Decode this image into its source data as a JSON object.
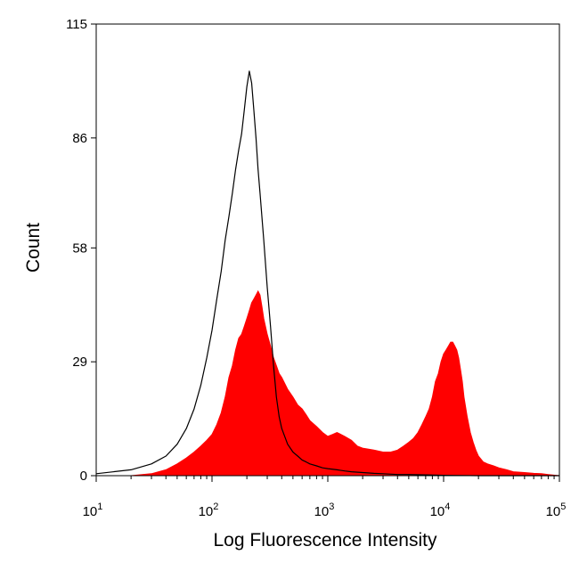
{
  "chart_data": {
    "type": "area",
    "xlabel": "Log Fluorescence Intensity",
    "ylabel": "Count",
    "x_scale": "log",
    "xlim": [
      10,
      100000
    ],
    "ylim": [
      0,
      115
    ],
    "y_ticks": [
      "0",
      "29",
      "58",
      "86",
      "115"
    ],
    "y_tick_values": [
      0,
      29,
      58,
      86,
      115
    ],
    "x_ticks": [
      {
        "value": 10,
        "base": "10",
        "exp": "1"
      },
      {
        "value": 100,
        "base": "10",
        "exp": "2"
      },
      {
        "value": 1000,
        "base": "10",
        "exp": "3"
      },
      {
        "value": 10000,
        "base": "10",
        "exp": "4"
      },
      {
        "value": 100000,
        "base": "10",
        "exp": "5"
      }
    ],
    "grid": false,
    "series": [
      {
        "style": "filled",
        "color": "#ff0000",
        "x": [
          10,
          20,
          30,
          40,
          50,
          60,
          70,
          80,
          90,
          100,
          110,
          120,
          130,
          140,
          150,
          160,
          170,
          180,
          190,
          200,
          210,
          220,
          230,
          240,
          250,
          260,
          270,
          280,
          300,
          320,
          340,
          360,
          380,
          400,
          450,
          500,
          550,
          600,
          650,
          700,
          800,
          900,
          1000,
          1100,
          1200,
          1400,
          1600,
          1800,
          2000,
          2500,
          3000,
          3500,
          4000,
          4500,
          5000,
          5500,
          6000,
          6500,
          7000,
          7500,
          8000,
          8500,
          9000,
          9500,
          10000,
          10500,
          11000,
          11500,
          12000,
          12500,
          13000,
          13500,
          14000,
          14500,
          15000,
          16000,
          17000,
          18000,
          19000,
          20000,
          22000,
          24000,
          27000,
          30000,
          35000,
          40000,
          50000,
          60000,
          70000,
          80000,
          100000
        ],
        "y": [
          0,
          0,
          0.5,
          1.5,
          3,
          4.5,
          6,
          7.5,
          9,
          10.5,
          13,
          16,
          20,
          25,
          28,
          32,
          35,
          36,
          38,
          40,
          42,
          44,
          45,
          46,
          47,
          46,
          43,
          40,
          36,
          33,
          30,
          28,
          26,
          25,
          22,
          20,
          18,
          17,
          15.5,
          14,
          12.5,
          11,
          10,
          10.5,
          11,
          10,
          9,
          7.5,
          7,
          6.5,
          6,
          6,
          6.5,
          7.5,
          8.5,
          9.5,
          11,
          13,
          15,
          17,
          20,
          24,
          26,
          29,
          31,
          32,
          33,
          34,
          34,
          33,
          32,
          30,
          27,
          24,
          20,
          15,
          11,
          8.5,
          6.5,
          5,
          3.5,
          3,
          2.5,
          2,
          1.5,
          1,
          0.8,
          0.6,
          0.5,
          0.3,
          0
        ]
      },
      {
        "style": "outline",
        "color": "#000000",
        "x": [
          10,
          20,
          30,
          40,
          50,
          60,
          70,
          80,
          90,
          100,
          110,
          120,
          130,
          140,
          150,
          160,
          170,
          180,
          190,
          200,
          210,
          220,
          230,
          240,
          250,
          260,
          280,
          300,
          320,
          340,
          360,
          380,
          400,
          450,
          500,
          550,
          600,
          650,
          700,
          800,
          900,
          1000,
          1200,
          1400,
          1600,
          2000,
          2500,
          3000,
          4000,
          5000,
          7000,
          10000,
          20000,
          50000,
          100000
        ],
        "y": [
          0.5,
          1.5,
          3,
          5,
          8,
          12,
          17,
          23,
          30,
          37,
          45,
          52,
          60,
          66,
          72,
          78,
          83,
          87,
          93,
          99,
          103,
          100,
          93,
          86,
          78,
          72,
          60,
          48,
          38,
          28,
          20,
          15,
          12,
          8,
          6,
          5,
          4,
          3.5,
          3,
          2.5,
          2,
          1.8,
          1.5,
          1.2,
          1,
          0.8,
          0.6,
          0.5,
          0.3,
          0.3,
          0.2,
          0.1,
          0,
          0,
          0
        ]
      }
    ]
  }
}
